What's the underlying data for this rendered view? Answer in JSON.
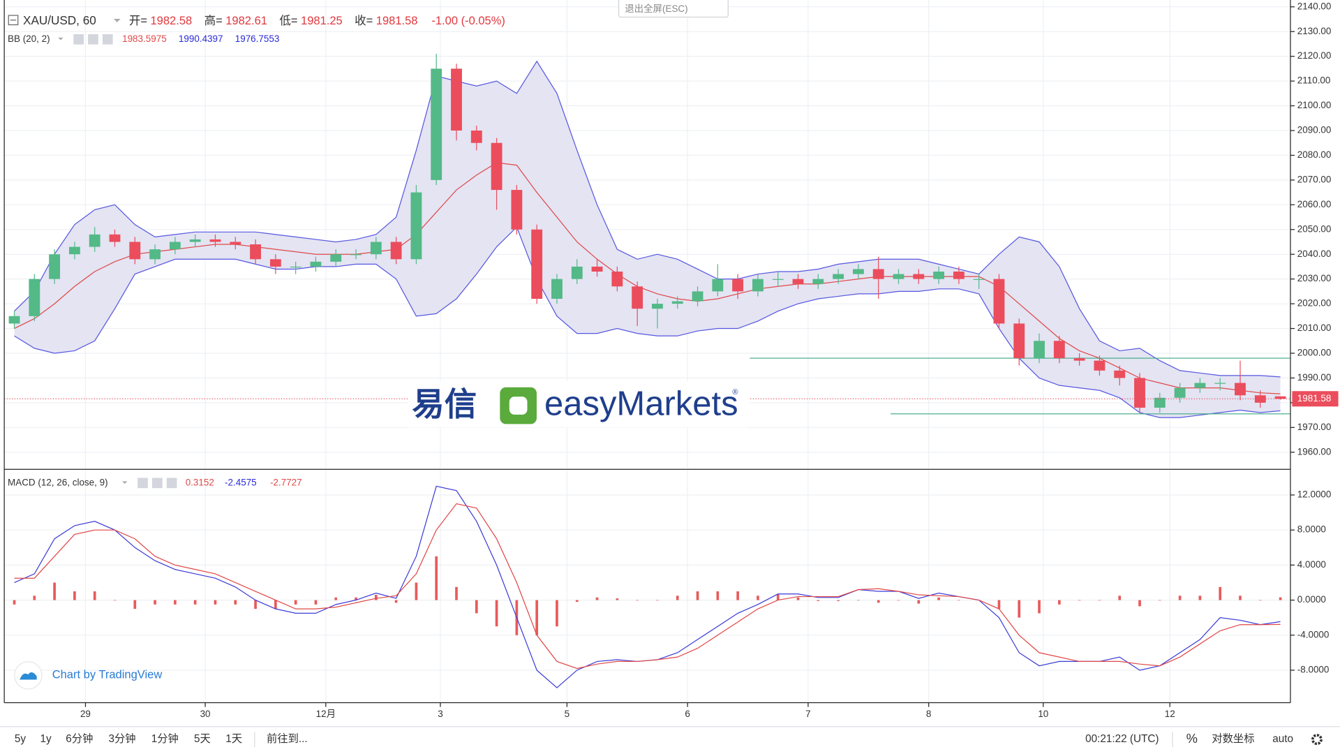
{
  "chart_data": [
    {
      "type": "candlestick",
      "symbol": "XAU/USD, 60",
      "ohlc_labels": [
        "开=",
        "高=",
        "低=",
        "收="
      ],
      "ohlc_values": [
        1982.58,
        1982.61,
        1981.25,
        1981.58
      ],
      "change": "-1.00 (-0.05%)",
      "up_color": "#53b987",
      "down_color": "#eb4d5c",
      "open": [
        2012,
        2015,
        2030,
        2040,
        2043,
        2048,
        2045,
        2038,
        2042,
        2045,
        2046,
        2045,
        2044,
        2038,
        2035,
        2035,
        2037,
        2040,
        2040,
        2045,
        2038,
        2070,
        2115,
        2090,
        2085,
        2066,
        2050,
        2022,
        2030,
        2035,
        2033,
        2027,
        2018,
        2020,
        2021,
        2025,
        2030,
        2025,
        2030,
        2030,
        2028,
        2030,
        2032,
        2034,
        2030,
        2032,
        2030,
        2033,
        2030,
        2030,
        2012,
        1998,
        2005,
        1998,
        1997,
        1993,
        1990,
        1978,
        1982,
        1986,
        1988,
        1988,
        1983,
        1982.58
      ],
      "high": [
        2017,
        2032,
        2042,
        2045,
        2051,
        2050,
        2047,
        2044,
        2047,
        2048,
        2048,
        2047,
        2046,
        2040,
        2037,
        2039,
        2042,
        2042,
        2047,
        2047,
        2068,
        2121,
        2117,
        2092,
        2087,
        2068,
        2052,
        2032,
        2038,
        2038,
        2035,
        2029,
        2022,
        2023,
        2027,
        2036,
        2032,
        2032,
        2033,
        2032,
        2032,
        2034,
        2036,
        2039,
        2034,
        2034,
        2035,
        2035,
        2032,
        2032,
        2014,
        2008,
        2007,
        2000,
        1999,
        1995,
        1992,
        1984,
        1988,
        1990,
        1990,
        1997,
        1985,
        1982.61
      ],
      "low": [
        2010,
        2013,
        2028,
        2038,
        2041,
        2043,
        2036,
        2036,
        2040,
        2043,
        2043,
        2042,
        2036,
        2032,
        2032,
        2033,
        2035,
        2038,
        2038,
        2036,
        2036,
        2068,
        2086,
        2082,
        2058,
        2048,
        2020,
        2020,
        2028,
        2031,
        2025,
        2011,
        2010,
        2018,
        2019,
        2023,
        2022,
        2023,
        2027,
        2026,
        2026,
        2028,
        2030,
        2022,
        2028,
        2028,
        2028,
        2028,
        2026,
        2010,
        1995,
        1996,
        1996,
        1995,
        1991,
        1987,
        1976,
        1976,
        1980,
        1984,
        1985,
        1981,
        1978,
        1981.25
      ],
      "close": [
        2015,
        2030,
        2040,
        2043,
        2048,
        2045,
        2038,
        2042,
        2045,
        2046,
        2045,
        2044,
        2038,
        2035,
        2035,
        2037,
        2040,
        2040,
        2045,
        2038,
        2065,
        2115,
        2090,
        2085,
        2066,
        2050,
        2022,
        2030,
        2035,
        2033,
        2027,
        2018,
        2020,
        2021,
        2025,
        2030,
        2025,
        2030,
        2030,
        2028,
        2030,
        2032,
        2034,
        2030,
        2032,
        2030,
        2033,
        2030,
        2030,
        2012,
        1998,
        2005,
        1998,
        1997,
        1993,
        1990,
        1978,
        1982,
        1986,
        1988,
        1988,
        1983,
        1980,
        1981.58
      ],
      "indicator": {
        "name": "BB (20, 2)",
        "fill": "#e4e4f3",
        "legend_values": [
          1983.5975,
          1990.4397,
          1976.7553
        ],
        "legend_colors": [
          "#e04848",
          "#2b2bd8",
          "#2b2bd8"
        ],
        "upper": {
          "color": "#5656e0",
          "values": [
            2017,
            2025,
            2040,
            2052,
            2058,
            2060,
            2052,
            2047,
            2048,
            2049,
            2049,
            2049,
            2049,
            2048,
            2047,
            2046,
            2045,
            2046,
            2048,
            2055,
            2082,
            2112,
            2110,
            2108,
            2110,
            2105,
            2118,
            2105,
            2082,
            2060,
            2042,
            2038,
            2040,
            2038,
            2034,
            2030,
            2030,
            2032,
            2033,
            2033,
            2034,
            2036,
            2037,
            2038,
            2038,
            2038,
            2036,
            2034,
            2032,
            2040,
            2047,
            2045,
            2035,
            2018,
            2005,
            2001,
            2002,
            1997,
            1993,
            1992,
            1991,
            1991,
            1991,
            1990.4397
          ]
        },
        "middle": {
          "color": "#e04848",
          "values": [
            2010,
            2014,
            2020,
            2027,
            2033,
            2037,
            2040,
            2041,
            2042,
            2043,
            2044,
            2044,
            2043,
            2042,
            2041,
            2040,
            2040,
            2040,
            2041,
            2042,
            2048,
            2057,
            2066,
            2072,
            2077,
            2076,
            2065,
            2055,
            2045,
            2038,
            2032,
            2027,
            2024,
            2022,
            2021,
            2022,
            2024,
            2026,
            2027,
            2028,
            2028,
            2029,
            2030,
            2031,
            2031,
            2031,
            2031,
            2031,
            2031,
            2027,
            2020,
            2013,
            2006,
            2001,
            1998,
            1994,
            1990,
            1988,
            1986,
            1986,
            1986,
            1985,
            1984,
            1983.5975
          ]
        },
        "lower": {
          "color": "#5656e0",
          "values": [
            2007,
            2002,
            2000,
            2001,
            2005,
            2018,
            2032,
            2035,
            2038,
            2038,
            2038,
            2038,
            2036,
            2034,
            2034,
            2035,
            2035,
            2036,
            2036,
            2030,
            2015,
            2016,
            2022,
            2032,
            2043,
            2051,
            2030,
            2015,
            2008,
            2008,
            2010,
            2008,
            2007,
            2007,
            2009,
            2010,
            2010,
            2013,
            2017,
            2020,
            2022,
            2023,
            2024,
            2024,
            2025,
            2025,
            2026,
            2026,
            2024,
            2010,
            1998,
            1990,
            1987,
            1986,
            1985,
            1982,
            1976,
            1974,
            1974,
            1975,
            1976,
            1977,
            1976,
            1976.7553
          ]
        }
      },
      "hlines": [
        {
          "value": 1998,
          "x_from": 37.1,
          "color": "#3aa882"
        },
        {
          "value": 1975.5,
          "x_from": 44.1,
          "color": "#3aa882"
        }
      ],
      "xlim": [
        0,
        64
      ],
      "xticks": [
        {
          "value": 4.04,
          "label": "29"
        },
        {
          "value": 10.0,
          "label": "30"
        },
        {
          "value": 16.0,
          "label": "12月"
        },
        {
          "value": 21.7,
          "label": "3"
        },
        {
          "value": 28.0,
          "label": "5"
        },
        {
          "value": 34.0,
          "label": "6"
        },
        {
          "value": 40.0,
          "label": "7"
        },
        {
          "value": 46.0,
          "label": "8"
        },
        {
          "value": 51.7,
          "label": "10"
        },
        {
          "value": 58.0,
          "label": "12"
        }
      ],
      "ylim": [
        1953.43,
        2142.76
      ],
      "yticks": [
        {
          "value": 1960,
          "label": "1960.00"
        },
        {
          "value": 1970,
          "label": "1970.00"
        },
        {
          "value": 1980,
          "label": "1980.00"
        },
        {
          "value": 1990,
          "label": "1990.00"
        },
        {
          "value": 2000,
          "label": "2000.00"
        },
        {
          "value": 2010,
          "label": "2010.00"
        },
        {
          "value": 2020,
          "label": "2020.00"
        },
        {
          "value": 2030,
          "label": "2030.00"
        },
        {
          "value": 2040,
          "label": "2040.00"
        },
        {
          "value": 2050,
          "label": "2050.00"
        },
        {
          "value": 2060,
          "label": "2060.00"
        },
        {
          "value": 2070,
          "label": "2070.00"
        },
        {
          "value": 2080,
          "label": "2080.00"
        },
        {
          "value": 2090,
          "label": "2090.00"
        },
        {
          "value": 2100,
          "label": "2100.00"
        },
        {
          "value": 2110,
          "label": "2110.00"
        },
        {
          "value": 2120,
          "label": "2120.00"
        },
        {
          "value": 2130,
          "label": "2130.00"
        },
        {
          "value": 2140,
          "label": "2140.00"
        }
      ],
      "grid": true
    },
    {
      "type": "macd",
      "name": "MACD (12, 26, close, 9)",
      "legend_values": [
        0.3152,
        -2.4575,
        -2.7727
      ],
      "legend_colors": [
        "#e04848",
        "#2b2bd8",
        "#e04848"
      ],
      "histogram": {
        "color": "#e85a5a",
        "values": [
          -0.5,
          0.5,
          2,
          1,
          1,
          0,
          -1,
          -0.5,
          -0.5,
          -0.5,
          -0.5,
          -0.5,
          -1,
          -1,
          -0.5,
          -0.5,
          0.3,
          0.3,
          0.6,
          -0.3,
          2,
          5,
          1.5,
          -1.5,
          -3,
          -4,
          -4,
          -3,
          -0.2,
          0.3,
          0.2,
          0,
          0,
          0.5,
          1,
          1,
          1,
          0.5,
          0.7,
          0.3,
          -0.1,
          -0.1,
          0,
          -0.3,
          0,
          -0.4,
          0.3,
          0,
          0,
          -1,
          -2,
          -1.5,
          -0.5,
          0,
          0,
          0.5,
          -0.7,
          0,
          0.5,
          0.5,
          1.5,
          0.5,
          0,
          0.3152
        ]
      },
      "series": [
        {
          "color": "#3b3bd6",
          "values": [
            2,
            3,
            7,
            8.5,
            9,
            8,
            6,
            4.5,
            3.5,
            3,
            2.5,
            1.5,
            0,
            -1,
            -1.5,
            -1.5,
            -0.5,
            0,
            0.8,
            0.2,
            5,
            13,
            12.5,
            9,
            4,
            -2,
            -8,
            -10,
            -8,
            -7,
            -6.8,
            -7,
            -6.8,
            -6,
            -4.5,
            -3,
            -1.5,
            -0.5,
            0.7,
            0.7,
            0.3,
            0.3,
            1.2,
            1,
            1,
            0.2,
            0.8,
            0.4,
            0,
            -2,
            -6,
            -7.5,
            -7,
            -7,
            -7,
            -6.5,
            -8,
            -7.5,
            -6,
            -4.5,
            -2,
            -2.3,
            -2.8,
            -2.4575
          ]
        },
        {
          "color": "#e04848",
          "values": [
            2.5,
            2.5,
            5,
            7.5,
            8,
            8,
            7,
            5,
            4,
            3.5,
            3,
            2,
            1,
            0,
            -1,
            -1,
            -0.8,
            -0.3,
            0.2,
            0.5,
            3,
            8,
            11,
            10.5,
            7,
            2,
            -4,
            -7,
            -7.8,
            -7.3,
            -7,
            -7,
            -6.8,
            -6.5,
            -5.5,
            -4,
            -2.5,
            -1,
            0,
            0.4,
            0.4,
            0.4,
            1.2,
            1.3,
            1,
            0.6,
            0.5,
            0.4,
            0,
            -1,
            -4,
            -6,
            -6.5,
            -7,
            -7,
            -7,
            -7.3,
            -7.5,
            -6.5,
            -5,
            -3.5,
            -2.8,
            -2.8,
            -2.7727
          ]
        }
      ],
      "ylim": [
        -11.71,
        14.83
      ],
      "yticks": [
        {
          "value": -8,
          "label": "-8.0000"
        },
        {
          "value": -4,
          "label": "-4.0000"
        },
        {
          "value": 0,
          "label": "0.0000"
        },
        {
          "value": 4,
          "label": "4.0000"
        },
        {
          "value": 8,
          "label": "8.0000"
        },
        {
          "value": 12,
          "label": "12.0000"
        }
      ],
      "grid": true
    }
  ],
  "ui": {
    "exit_fullscreen": "退出全屏(ESC)",
    "credit": "Chart by TradingView",
    "logo": {
      "cn": "易信",
      "en": "easyMarkets",
      "mark": "®"
    },
    "toolbar": [
      "5y",
      "1y",
      "6分钟",
      "3分钟",
      "1分钟",
      "5天",
      "1天",
      "前往到..."
    ],
    "clock": "00:21:22 (UTC)",
    "percent": "%",
    "log": "对数坐标",
    "auto": "auto"
  }
}
